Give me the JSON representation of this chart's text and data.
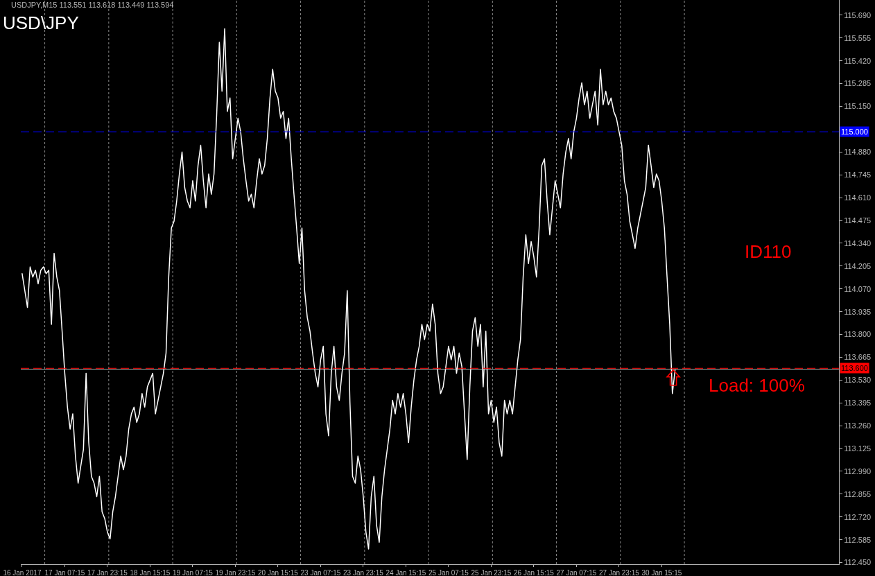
{
  "chart_data": {
    "type": "line",
    "title": "USD\\JPY",
    "annotations": [
      "USDJPY,M15 113.551 113.618 113.449 113.594",
      "ID110",
      "Load: 100%"
    ],
    "categories": [
      "16 Jan 2017",
      null,
      null,
      null,
      null,
      null,
      null,
      null,
      null,
      null,
      null,
      null,
      null,
      null,
      null,
      null,
      "17 Jan 07:15",
      null,
      null,
      null,
      null,
      null,
      null,
      null,
      null,
      null,
      null,
      null,
      null,
      null,
      null,
      null,
      "17 Jan 23:15",
      null,
      null,
      null,
      null,
      null,
      null,
      null,
      null,
      null,
      null,
      null,
      null,
      null,
      null,
      null,
      "18 Jan 15:15",
      null,
      null,
      null,
      null,
      null,
      null,
      null,
      null,
      null,
      null,
      null,
      null,
      null,
      null,
      null,
      "19 Jan 07:15",
      null,
      null,
      null,
      null,
      null,
      null,
      null,
      null,
      null,
      null,
      null,
      null,
      null,
      null,
      null,
      "19 Jan 23:15",
      null,
      null,
      null,
      null,
      null,
      null,
      null,
      null,
      null,
      null,
      null,
      null,
      null,
      null,
      null,
      "20 Jan 15:15",
      null,
      null,
      null,
      null,
      null,
      null,
      null,
      null,
      null,
      null,
      null,
      null,
      null,
      null,
      null,
      "23 Jan 07:15",
      null,
      null,
      null,
      null,
      null,
      null,
      null,
      null,
      null,
      null,
      null,
      null,
      null,
      null,
      null,
      "23 Jan 23:15",
      null,
      null,
      null,
      null,
      null,
      null,
      null,
      null,
      null,
      null,
      null,
      null,
      null,
      null,
      null,
      "24 Jan 15:15",
      null,
      null,
      null,
      null,
      null,
      null,
      null,
      null,
      null,
      null,
      null,
      null,
      null,
      null,
      null,
      "25 Jan 07:15",
      null,
      null,
      null,
      null,
      null,
      null,
      null,
      null,
      null,
      null,
      null,
      null,
      null,
      null,
      null,
      "25 Jan 23:15",
      null,
      null,
      null,
      null,
      null,
      null,
      null,
      null,
      null,
      null,
      null,
      null,
      null,
      null,
      null,
      "26 Jan 15:15",
      null,
      null,
      null,
      null,
      null,
      null,
      null,
      null,
      null,
      null,
      null,
      null,
      null,
      null,
      null,
      "27 Jan 07:15",
      null,
      null,
      null,
      null,
      null,
      null,
      null,
      null,
      null,
      null,
      null,
      null,
      null,
      null,
      null,
      "27 Jan 23:15",
      null,
      null,
      null,
      null,
      null,
      null,
      null,
      null,
      null,
      null,
      null,
      null,
      null,
      null,
      null,
      "30 Jan 15:15",
      null,
      null,
      null,
      null,
      null,
      null,
      null,
      null,
      null,
      null,
      null,
      null,
      null,
      null,
      null,
      null,
      null,
      null,
      null,
      null,
      null,
      null,
      null,
      null,
      null,
      null,
      null,
      null,
      null,
      null,
      null,
      null,
      null,
      null,
      null,
      null,
      null,
      null,
      null,
      null,
      null,
      null,
      null,
      null,
      null,
      null,
      null,
      null,
      null,
      null,
      null,
      null,
      null,
      null,
      null,
      null,
      null,
      null,
      null,
      null,
      null,
      null,
      null,
      null,
      null,
      null
    ],
    "series": [
      {
        "color": "#ffffff",
        "values": [
          114.16,
          114.06,
          113.96,
          114.2,
          114.14,
          114.18,
          114.1,
          114.18,
          114.2,
          114.16,
          114.18,
          113.86,
          114.28,
          114.14,
          114.06,
          113.82,
          113.57,
          113.37,
          113.24,
          113.33,
          113.08,
          112.92,
          113.02,
          113.12,
          113.57,
          113.16,
          112.96,
          112.92,
          112.84,
          112.96,
          112.75,
          112.71,
          112.63,
          112.59,
          112.75,
          112.84,
          112.96,
          113.08,
          113.0,
          113.08,
          113.24,
          113.33,
          113.37,
          113.28,
          113.33,
          113.45,
          113.37,
          113.49,
          113.53,
          113.57,
          113.33,
          113.41,
          113.49,
          113.57,
          113.69,
          114.14,
          114.43,
          114.47,
          114.59,
          114.75,
          114.88,
          114.67,
          114.59,
          114.55,
          114.71,
          114.59,
          114.8,
          114.92,
          114.71,
          114.55,
          114.75,
          114.63,
          114.75,
          115.1,
          115.53,
          115.24,
          115.61,
          115.12,
          115.2,
          114.84,
          114.96,
          115.08,
          115.0,
          114.84,
          114.71,
          114.59,
          114.63,
          114.55,
          114.71,
          114.84,
          114.75,
          114.8,
          114.96,
          115.2,
          115.37,
          115.24,
          115.2,
          115.08,
          115.12,
          114.96,
          115.08,
          114.84,
          114.63,
          114.43,
          114.22,
          114.43,
          114.06,
          113.9,
          113.82,
          113.69,
          113.57,
          113.49,
          113.65,
          113.73,
          113.33,
          113.2,
          113.57,
          113.73,
          113.49,
          113.41,
          113.57,
          113.69,
          114.06,
          113.4,
          112.96,
          112.92,
          113.08,
          113.0,
          112.84,
          112.63,
          112.53,
          112.84,
          112.96,
          112.67,
          112.57,
          112.84,
          113.0,
          113.12,
          113.24,
          113.41,
          113.33,
          113.45,
          113.37,
          113.45,
          113.33,
          113.16,
          113.37,
          113.53,
          113.65,
          113.73,
          113.86,
          113.77,
          113.86,
          113.82,
          113.98,
          113.86,
          113.57,
          113.45,
          113.49,
          113.61,
          113.73,
          113.65,
          113.73,
          113.57,
          113.69,
          113.61,
          113.33,
          113.06,
          113.49,
          113.82,
          113.9,
          113.73,
          113.86,
          113.49,
          113.82,
          113.33,
          113.41,
          113.28,
          113.37,
          113.16,
          113.08,
          113.41,
          113.33,
          113.41,
          113.33,
          113.49,
          113.65,
          113.77,
          114.14,
          114.39,
          114.22,
          114.35,
          114.26,
          114.14,
          114.43,
          114.8,
          114.84,
          114.59,
          114.39,
          114.55,
          114.71,
          114.63,
          114.55,
          114.75,
          114.88,
          114.96,
          114.84,
          115.0,
          115.08,
          115.2,
          115.29,
          115.16,
          115.24,
          115.08,
          115.16,
          115.24,
          115.04,
          115.37,
          115.16,
          115.24,
          115.16,
          115.2,
          115.12,
          115.08,
          115.0,
          114.92,
          114.71,
          114.63,
          114.47,
          114.39,
          114.31,
          114.43,
          114.51,
          114.59,
          114.67,
          114.92,
          114.8,
          114.67,
          114.75,
          114.71,
          114.59,
          114.43,
          114.14,
          113.86,
          113.45,
          113.59,
          null,
          null,
          null,
          null,
          null,
          null,
          null,
          null,
          null,
          null,
          null,
          null,
          null,
          null,
          null,
          null,
          null,
          null,
          null,
          null,
          null,
          null,
          null,
          null,
          null,
          null,
          null,
          null,
          null,
          null,
          null,
          null,
          null,
          null,
          null,
          null,
          null,
          null,
          null,
          null,
          null,
          null,
          null,
          null,
          null,
          null,
          null,
          null,
          null,
          null,
          null,
          null,
          null,
          null,
          null,
          null,
          null,
          null,
          null,
          null,
          null
        ]
      }
    ],
    "ylim": [
      112.44,
      115.78
    ],
    "yticks": [
      {
        "value": 112.45,
        "label": "112.450"
      },
      112.585,
      {
        "value": 112.72,
        "label": "112.720"
      },
      112.855,
      {
        "value": 112.99,
        "label": "112.990"
      },
      113.125,
      {
        "value": 113.26,
        "label": "113.260"
      },
      113.395,
      {
        "value": 113.53,
        "label": "113.530"
      },
      113.665,
      {
        "value": 113.8,
        "label": "113.800"
      },
      113.935,
      {
        "value": 114.07,
        "label": "114.070"
      },
      114.205,
      {
        "value": 114.34,
        "label": "114.340"
      },
      114.475,
      {
        "value": 114.61,
        "label": "114.610"
      },
      114.745,
      {
        "value": 114.88,
        "label": "114.880"
      },
      {
        "value": 115.15,
        "label": "115.150"
      },
      115.285,
      {
        "value": 115.42,
        "label": "115.420"
      },
      115.555,
      {
        "value": 115.69,
        "label": "115.690"
      }
    ],
    "ref_lines": [
      {
        "axis": "y",
        "value": 115.0,
        "label": "115.000",
        "color": "#0000ff",
        "line_style": "dashed"
      },
      {
        "axis": "y",
        "value": 113.6,
        "label": "113.600",
        "color": "#ff0000",
        "line_style": "dashed"
      },
      {
        "axis": "y",
        "value": 113.594,
        "color": "#c0c0c0",
        "line_style": "solid"
      }
    ]
  }
}
